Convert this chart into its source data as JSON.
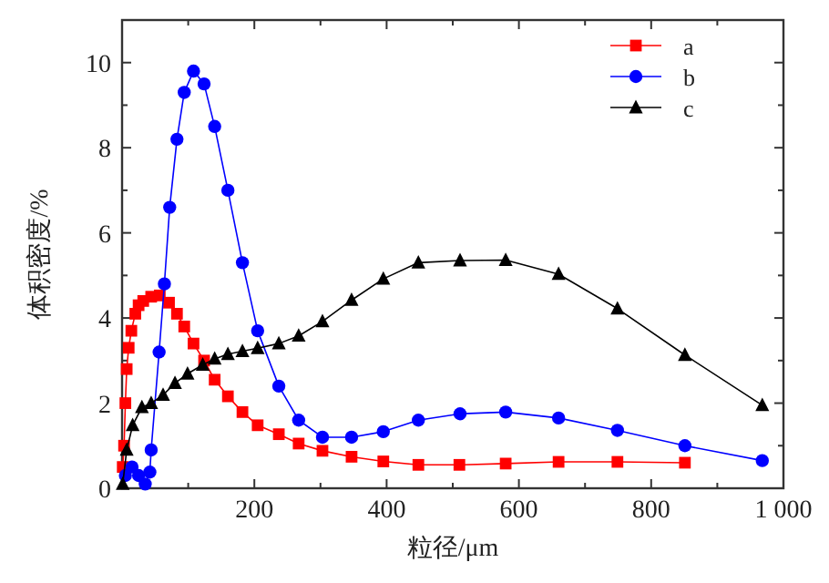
{
  "chart_data": {
    "type": "line",
    "xlabel": "粒径/μm",
    "ylabel": "体积密度/%",
    "xlim": [
      0,
      1000
    ],
    "ylim": [
      0,
      11
    ],
    "xticks": [
      {
        "value": 100,
        "label": null
      },
      200,
      {
        "value": 300,
        "label": null
      },
      400,
      {
        "value": 500,
        "label": null
      },
      600,
      {
        "value": 700,
        "label": null
      },
      800,
      {
        "value": 900,
        "label": null
      },
      {
        "value": 1000,
        "label": "1 000"
      }
    ],
    "yticks": [
      0,
      {
        "value": 1,
        "label": null
      },
      2,
      {
        "value": 3,
        "label": null
      },
      4,
      {
        "value": 5,
        "label": null
      },
      6,
      {
        "value": 7,
        "label": null
      },
      8,
      {
        "value": 9,
        "label": null
      },
      10
    ],
    "legend": "top right",
    "series": [
      {
        "name": "a",
        "color": "#ff0000",
        "marker": "square",
        "x": [
          1,
          3,
          5,
          7,
          10,
          14,
          20,
          25,
          32,
          44,
          57,
          71,
          83,
          94,
          108,
          124,
          140,
          160,
          182,
          205,
          237,
          267,
          303,
          347,
          395,
          448,
          510,
          580,
          660,
          749,
          851
        ],
        "values": [
          0.5,
          1.0,
          2.0,
          2.8,
          3.3,
          3.7,
          4.1,
          4.3,
          4.4,
          4.5,
          4.53,
          4.36,
          4.1,
          3.8,
          3.4,
          3.0,
          2.55,
          2.16,
          1.79,
          1.48,
          1.27,
          1.05,
          0.88,
          0.74,
          0.63,
          0.55,
          0.55,
          0.58,
          0.62,
          0.62,
          0.6
        ]
      },
      {
        "name": "b",
        "color": "#0000ff",
        "marker": "circle",
        "x": [
          5,
          15,
          25,
          35,
          42,
          44,
          56,
          64,
          72,
          83,
          94,
          108,
          124,
          140,
          160,
          182,
          205,
          237,
          267,
          303,
          347,
          395,
          448,
          511,
          580,
          660,
          749,
          851,
          968
        ],
        "values": [
          0.3,
          0.5,
          0.3,
          0.1,
          0.38,
          0.9,
          3.2,
          4.8,
          6.6,
          8.2,
          9.3,
          9.8,
          9.5,
          8.5,
          7.0,
          5.3,
          3.7,
          2.4,
          1.6,
          1.2,
          1.2,
          1.33,
          1.6,
          1.75,
          1.79,
          1.65,
          1.36,
          1.0,
          0.65
        ]
      },
      {
        "name": "c",
        "color": "#000000",
        "marker": "triangle",
        "x": [
          1,
          7,
          16,
          30,
          44,
          62,
          80,
          99,
          122,
          140,
          160,
          182,
          205,
          237,
          267,
          303,
          347,
          395,
          448,
          511,
          580,
          660,
          749,
          851,
          968
        ],
        "values": [
          0.1,
          0.9,
          1.48,
          1.9,
          2.0,
          2.19,
          2.47,
          2.69,
          2.9,
          3.04,
          3.15,
          3.22,
          3.29,
          3.4,
          3.58,
          3.92,
          4.42,
          4.92,
          5.3,
          5.35,
          5.36,
          5.03,
          4.22,
          3.13,
          1.95
        ]
      }
    ]
  }
}
